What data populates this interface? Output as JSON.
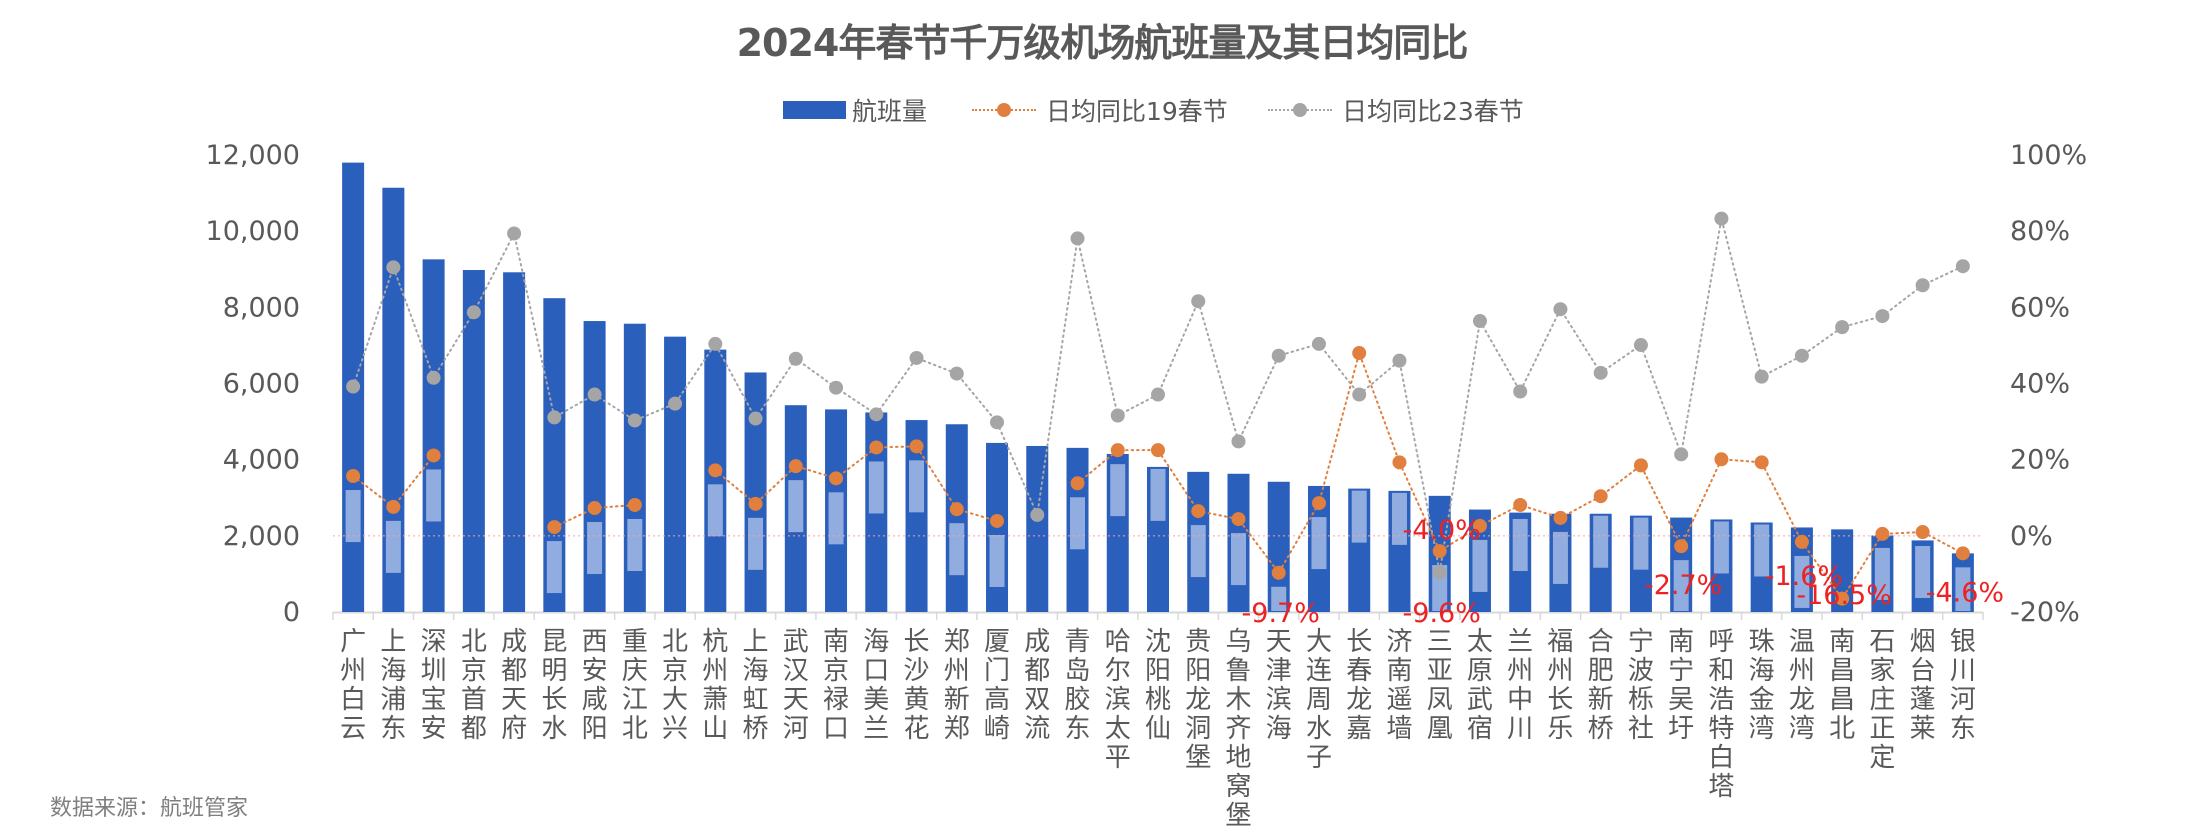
{
  "title": "2024年春节千万级机场航班量及其日均同比",
  "legend": {
    "bars": "航班量",
    "series19": "日均同比19春节",
    "series23": "日均同比23春节"
  },
  "source": "数据来源：航班管家",
  "colors": {
    "bar": "#2b5fbc",
    "bar_overlay": "#97b0df",
    "series19": "#e07f3e",
    "series23": "#a5a5a5",
    "negative_label": "#ee2222",
    "text": "#595959"
  },
  "chart_data": {
    "type": "bar",
    "title": "2024年春节千万级机场航班量及其日均同比",
    "xlabel": "",
    "ylabel": "",
    "ylim": [
      0,
      12000
    ],
    "y2lim": [
      -20,
      100
    ],
    "yticks": [
      "0",
      "2,000",
      "4,000",
      "6,000",
      "8,000",
      "10,000",
      "12,000"
    ],
    "y2ticks": [
      "-20%",
      "0%",
      "20%",
      "40%",
      "60%",
      "80%",
      "100%"
    ],
    "legend_position": "top",
    "grid": false,
    "categories": [
      "广州白云",
      "上海浦东",
      "深圳宝安",
      "北京首都",
      "成都天府",
      "昆明长水",
      "西安咸阳",
      "重庆江北",
      "北京大兴",
      "杭州萧山",
      "上海虹桥",
      "武汉天河",
      "南京禄口",
      "海口美兰",
      "长沙黄花",
      "郑州新郑",
      "厦门高崎",
      "成都双流",
      "青岛胶东",
      "哈尔滨太平",
      "沈阳桃仙",
      "贵阳龙洞堡",
      "乌鲁木齐地窝堡",
      "天津滨海",
      "大连周水子",
      "长春龙嘉",
      "济南遥墙",
      "三亚凤凰",
      "太原武宿",
      "兰州中川",
      "福州长乐",
      "合肥新桥",
      "宁波栎社",
      "南宁吴圩",
      "呼和浩特白塔",
      "珠海金湾",
      "温州龙湾",
      "南昌昌北",
      "石家庄正定",
      "烟台蓬莱",
      "银川河东"
    ],
    "series": [
      {
        "name": "航班量",
        "type": "bar",
        "axis": "left",
        "values": [
          11800,
          11140,
          9260,
          8980,
          8920,
          8240,
          7640,
          7570,
          7230,
          6890,
          6290,
          5430,
          5320,
          5240,
          5040,
          4930,
          4440,
          4360,
          4310,
          4150,
          3810,
          3680,
          3630,
          3420,
          3310,
          3240,
          3180,
          3050,
          2690,
          2610,
          2580,
          2580,
          2530,
          2480,
          2430,
          2350,
          2220,
          2170,
          2010,
          1880,
          1540
        ]
      },
      {
        "name": "日均同比19春节",
        "type": "line",
        "axis": "right",
        "unit": "%",
        "values": [
          15.7,
          7.6,
          21.1,
          null,
          null,
          2.3,
          7.3,
          8.1,
          null,
          17.2,
          8.4,
          18.3,
          15.1,
          23.2,
          23.5,
          7.0,
          3.9,
          null,
          13.8,
          22.5,
          22.5,
          6.5,
          4.4,
          -9.7,
          8.6,
          48.0,
          19.3,
          -4.0,
          2.6,
          8.1,
          4.7,
          10.4,
          18.5,
          -2.7,
          20.1,
          19.3,
          -1.6,
          -16.5,
          0.5,
          1.0,
          -4.6
        ]
      },
      {
        "name": "日均同比23春节",
        "type": "line",
        "axis": "right",
        "unit": "%",
        "values": [
          39.2,
          70.5,
          41.5,
          58.7,
          79.4,
          31.1,
          37.1,
          30.3,
          34.7,
          50.4,
          30.8,
          46.5,
          38.9,
          31.9,
          46.7,
          42.6,
          29.8,
          5.5,
          78.1,
          31.6,
          37.1,
          61.6,
          24.8,
          47.3,
          50.4,
          37.1,
          46.0,
          -9.6,
          56.4,
          37.9,
          59.5,
          42.8,
          50.1,
          21.4,
          83.3,
          41.8,
          47.3,
          54.8,
          57.7,
          65.8,
          70.8
        ]
      }
    ],
    "annotations": [
      {
        "category": "天津滨海",
        "text": "-9.7%"
      },
      {
        "category": "三亚凤凰",
        "text": "-4.0%"
      },
      {
        "category": "三亚凤凰",
        "text": "-9.6%"
      },
      {
        "category": "南宁吴圩",
        "text": "-2.7%"
      },
      {
        "category": "温州龙湾",
        "text": "-1.6%"
      },
      {
        "category": "南昌昌北",
        "text": "-16.5%"
      },
      {
        "category": "银川河东",
        "text": "-4.6%"
      }
    ]
  }
}
